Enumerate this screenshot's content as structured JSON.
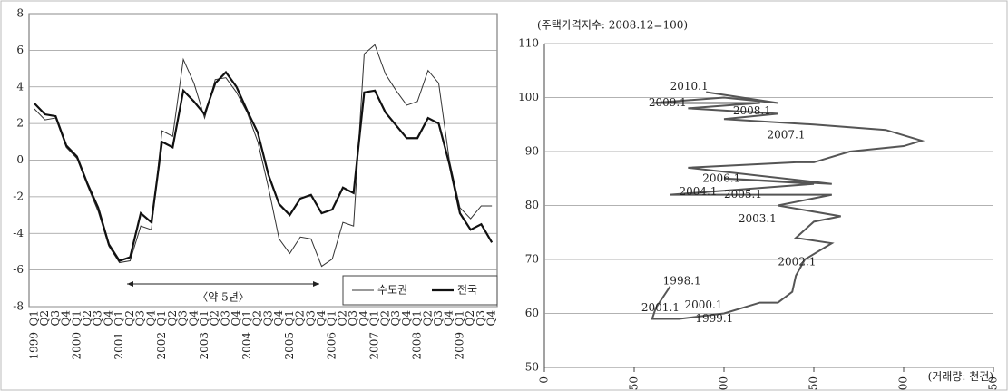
{
  "chart_data": [
    {
      "type": "line",
      "categories": [
        "Q1",
        "Q2",
        "Q3",
        "Q4",
        "Q1",
        "Q2",
        "Q3",
        "Q4",
        "Q1",
        "Q2",
        "Q3",
        "Q4",
        "Q1",
        "Q2",
        "Q3",
        "Q4",
        "Q1",
        "Q2",
        "Q3",
        "Q4",
        "Q1",
        "Q2",
        "Q3",
        "Q4",
        "Q1",
        "Q2",
        "Q3",
        "Q4",
        "Q1",
        "Q2",
        "Q3",
        "Q4",
        "Q1",
        "Q2",
        "Q3",
        "Q4",
        "Q1",
        "Q2",
        "Q3",
        "Q4",
        "Q1",
        "Q2",
        "Q3",
        "Q4"
      ],
      "years": [
        "1999",
        "2000",
        "2001",
        "2002",
        "2003",
        "2004",
        "2005",
        "2006",
        "2007",
        "2008",
        "2009"
      ],
      "series": [
        {
          "name": "수도권",
          "color": "#333333",
          "line_width": 1,
          "values": [
            2.8,
            2.2,
            2.3,
            0.7,
            0.1,
            -1.4,
            -2.8,
            -4.7,
            -5.6,
            -5.5,
            -3.6,
            -3.8,
            1.6,
            1.3,
            5.5,
            4.2,
            2.3,
            4.4,
            4.5,
            3.7,
            2.6,
            1.0,
            -1.5,
            -4.3,
            -5.1,
            -4.2,
            -4.3,
            -5.8,
            -5.4,
            -3.4,
            -3.6,
            5.8,
            6.3,
            4.7,
            3.8,
            3.0,
            3.2,
            4.9,
            4.2,
            0.0,
            -2.6,
            -3.2,
            -2.5,
            -2.5
          ]
        },
        {
          "name": "전국",
          "color": "#111111",
          "line_width": 2.2,
          "values": [
            3.1,
            2.5,
            2.4,
            0.8,
            0.2,
            -1.3,
            -2.6,
            -4.6,
            -5.5,
            -5.3,
            -2.9,
            -3.4,
            1.0,
            0.7,
            3.8,
            3.2,
            2.5,
            4.2,
            4.8,
            4.0,
            2.7,
            1.5,
            -0.8,
            -2.4,
            -3.0,
            -2.1,
            -1.9,
            -2.9,
            -2.7,
            -1.5,
            -1.8,
            3.7,
            3.8,
            2.6,
            1.9,
            1.2,
            1.2,
            2.3,
            2.0,
            -0.2,
            -2.9,
            -3.8,
            -3.5,
            -4.5
          ]
        }
      ],
      "ylim": [
        -8,
        8
      ],
      "yticks": [
        -8,
        -6,
        -4,
        -2,
        0,
        2,
        4,
        6,
        8
      ],
      "grid": true,
      "annotation": "〈약 5년〉"
    },
    {
      "type": "line",
      "y_label": "(주택가격지수: 2008.12=100)",
      "x_label": "(거래량: 천건)",
      "color": "#555555",
      "x": [
        70,
        62,
        60,
        75,
        100,
        120,
        130,
        138,
        140,
        145,
        160,
        140,
        150,
        165,
        130,
        160,
        120,
        70,
        150,
        100,
        160,
        80,
        140,
        150,
        170,
        200,
        210,
        190,
        150,
        100,
        130,
        80,
        120,
        60,
        100,
        130,
        90
      ],
      "values": [
        65,
        61,
        59,
        59,
        60,
        62,
        62,
        64,
        67,
        70,
        73,
        74,
        77,
        78,
        80,
        82,
        82,
        82,
        84,
        85,
        84,
        87,
        88,
        88,
        90,
        91,
        92,
        94,
        95,
        96,
        97,
        98,
        99,
        99,
        100,
        99,
        101
      ],
      "xlim": [
        0,
        250
      ],
      "xticks": [
        0,
        50,
        100,
        150,
        200,
        250
      ],
      "ylim": [
        50,
        110
      ],
      "yticks": [
        50,
        60,
        70,
        80,
        90,
        100,
        110
      ],
      "grid": true,
      "annotations": [
        {
          "text": "2010.1",
          "x": 70,
          "y": 102
        },
        {
          "text": "2009.1",
          "x": 58,
          "y": 99
        },
        {
          "text": "2008.1",
          "x": 105,
          "y": 97.5
        },
        {
          "text": "2007.1",
          "x": 124,
          "y": 93
        },
        {
          "text": "2006.1",
          "x": 88,
          "y": 85
        },
        {
          "text": "2004.1",
          "x": 75,
          "y": 82.5
        },
        {
          "text": "2005.1",
          "x": 100,
          "y": 82
        },
        {
          "text": "2003.1",
          "x": 108,
          "y": 77.5
        },
        {
          "text": "2002.1",
          "x": 130,
          "y": 69.5
        },
        {
          "text": "1998.1",
          "x": 66,
          "y": 66
        },
        {
          "text": "2001.1",
          "x": 54,
          "y": 61
        },
        {
          "text": "2000.1",
          "x": 78,
          "y": 61.5
        },
        {
          "text": "1999.1",
          "x": 84,
          "y": 59
        }
      ]
    }
  ]
}
